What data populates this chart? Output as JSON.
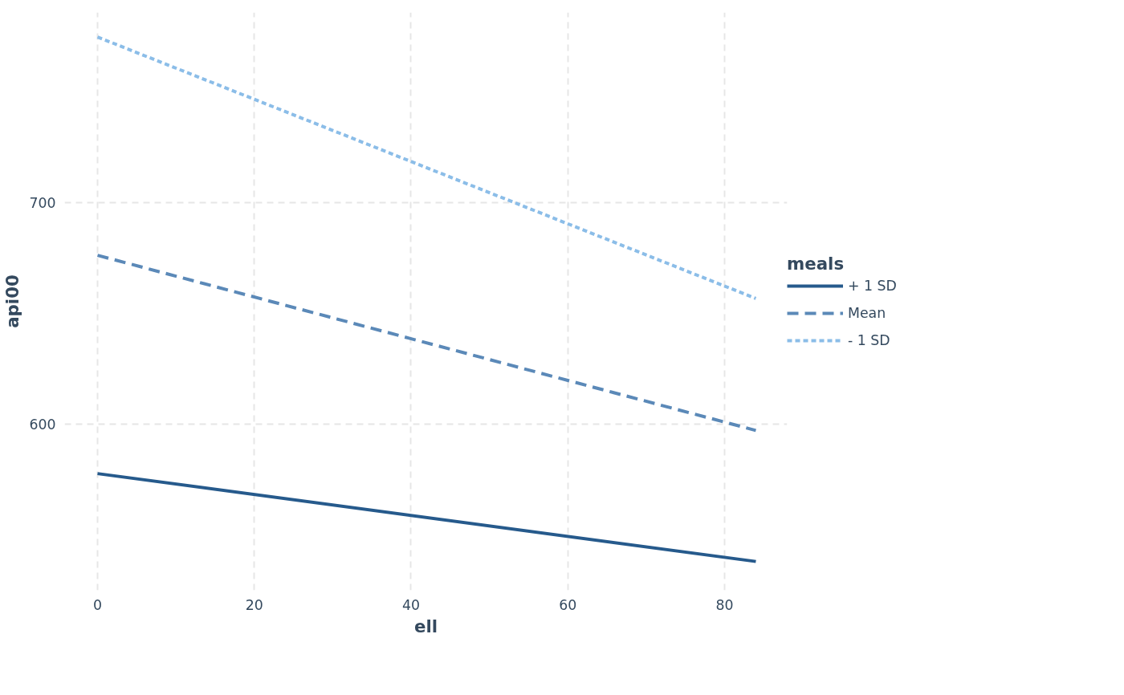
{
  "chart_data": {
    "type": "line",
    "xlabel": "ell",
    "ylabel": "api00",
    "legend_title": "meals",
    "x": [
      0,
      84
    ],
    "series": [
      {
        "name": "+ 1 SD",
        "color": "#265a8c",
        "values": [
          577.7,
          538
        ],
        "line_style": "solid"
      },
      {
        "name": "Mean",
        "color": "#5b89b8",
        "values": [
          676.3,
          597.2
        ],
        "line_style": "dashed"
      },
      {
        "name": "- 1 SD",
        "color": "#8bbde8",
        "values": [
          774.9,
          656.8
        ],
        "line_style": "dotted"
      }
    ],
    "xlim": [
      -4.2,
      88
    ],
    "ylim": [
      525,
      786
    ],
    "xticks": [
      0,
      20,
      40,
      60,
      80
    ],
    "yticks": [
      600,
      700
    ],
    "grid": true,
    "legend": "right"
  }
}
